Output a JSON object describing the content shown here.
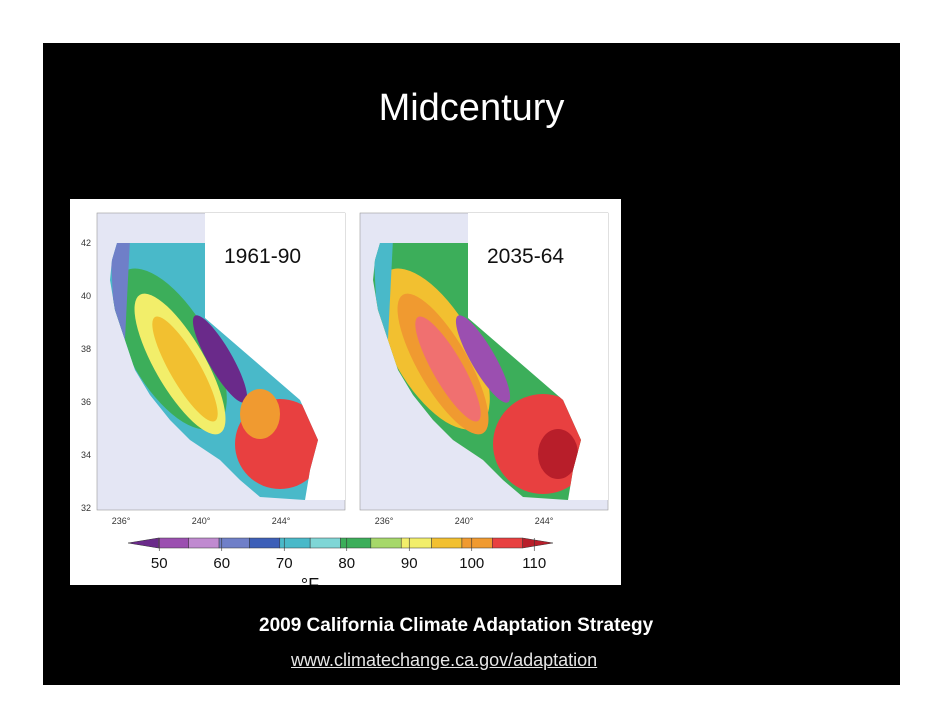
{
  "slide": {
    "title": "Midcentury",
    "figure": {
      "panels": [
        {
          "label": "1961-90"
        },
        {
          "label": "2035-64"
        }
      ],
      "latitudes": [
        "42",
        "40",
        "38",
        "36",
        "34",
        "32"
      ],
      "longitudes": [
        "236°",
        "240°",
        "244°"
      ],
      "colorbar": {
        "lim": [
          45,
          113
        ],
        "ticks": [
          50,
          60,
          70,
          80,
          90,
          100,
          110
        ],
        "unit": "°F",
        "colors": [
          "#6a2a8a",
          "#9b4fb0",
          "#c08ad0",
          "#6f7fc8",
          "#3d5fb8",
          "#49b9c9",
          "#7fd6d6",
          "#3cae5a",
          "#a6d86a",
          "#f2ee6a",
          "#f2c030",
          "#f09a30",
          "#e84040",
          "#b81e2a"
        ]
      }
    },
    "caption": "2009 California Climate Adaptation Strategy",
    "link": "www.climatechange.ca.gov/adaptation"
  }
}
